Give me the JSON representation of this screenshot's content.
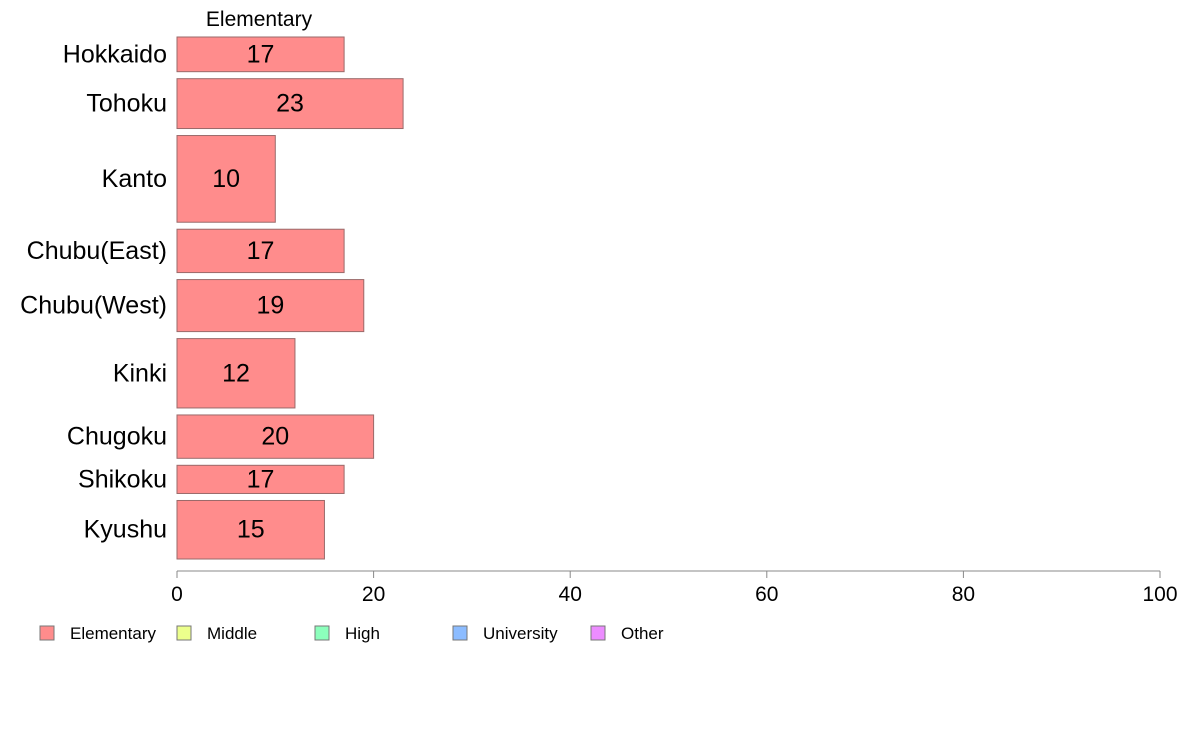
{
  "chart_data": {
    "type": "bar",
    "orientation": "horizontal",
    "column_title": "Elementary",
    "categories": [
      "Hokkaido",
      "Tohoku",
      "Kanto",
      "Chubu(East)",
      "Chubu(West)",
      "Kinki",
      "Chugoku",
      "Shikoku",
      "Kyushu"
    ],
    "series": [
      {
        "name": "Elementary",
        "values": [
          17,
          23,
          10,
          17,
          19,
          12,
          20,
          17,
          15
        ],
        "color": "#ff8c8c"
      }
    ],
    "bar_weights": [
      0.8,
      1.15,
      2.0,
      1.0,
      1.2,
      1.6,
      1.0,
      0.65,
      1.35
    ],
    "x_ticks": [
      0,
      20,
      40,
      60,
      80,
      100
    ],
    "xlim": [
      0,
      100
    ],
    "legend": [
      {
        "label": "Elementary",
        "color": "#ff8c8c"
      },
      {
        "label": "Middle",
        "color": "#ecff8c"
      },
      {
        "label": "High",
        "color": "#8cffbc"
      },
      {
        "label": "University",
        "color": "#8cbcff"
      },
      {
        "label": "Other",
        "color": "#ec8cff"
      }
    ],
    "legend_position": "bottom-left",
    "grid": false
  }
}
